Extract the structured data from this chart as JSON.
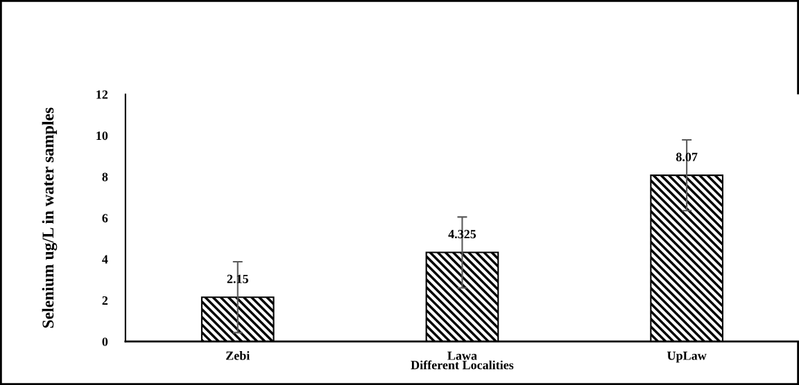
{
  "chart_data": {
    "type": "bar",
    "xlabel": "Different Localities",
    "ylabel": "Selenium ug/L in water samples",
    "categories": [
      "Zebi",
      "Lawa",
      "UpLaw"
    ],
    "values": [
      2.15,
      4.325,
      8.07
    ],
    "errors": [
      1.72,
      1.72,
      1.72
    ],
    "color": "#000000",
    "data_labels": true,
    "ylim": [
      0,
      12
    ],
    "yticks": [
      0,
      2,
      4,
      6,
      8,
      10,
      12
    ],
    "grid": false,
    "legend": false
  }
}
